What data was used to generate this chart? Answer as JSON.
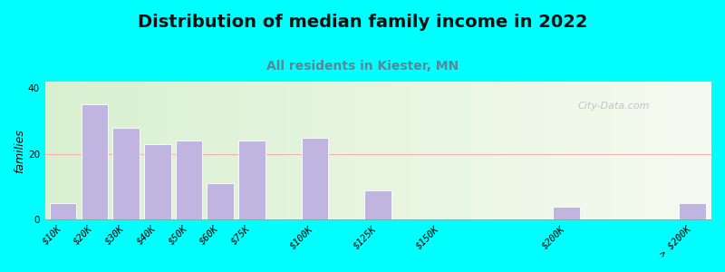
{
  "title": "Distribution of median family income in 2022",
  "subtitle": "All residents in Kiester, MN",
  "ylabel": "families",
  "categories": [
    "$10K",
    "$20K",
    "$30K",
    "$40K",
    "$50K",
    "$60K",
    "$75K",
    "$100K",
    "$125K",
    "$150K",
    "$200K",
    "> $200K"
  ],
  "values": [
    5,
    35,
    28,
    23,
    24,
    11,
    24,
    25,
    9,
    0,
    4,
    5
  ],
  "bar_color": "#c0b4e0",
  "bar_edgecolor": "#ffffff",
  "background_outer": "#00ffff",
  "bg_left_color": "#d8f0d0",
  "bg_right_color": "#f5faf0",
  "ylim": [
    0,
    42
  ],
  "yticks": [
    0,
    20,
    40
  ],
  "title_fontsize": 14,
  "subtitle_fontsize": 10,
  "subtitle_color": "#558899",
  "ylabel_fontsize": 9,
  "tick_fontsize": 7.5,
  "watermark": "City-Data.com"
}
